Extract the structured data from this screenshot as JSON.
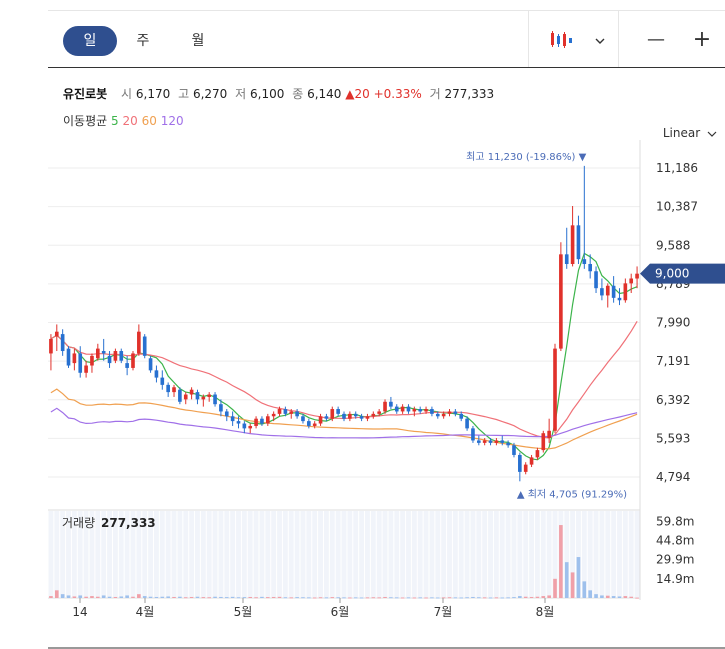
{
  "tabs": [
    "일",
    "주",
    "월"
  ],
  "active_tab": 0,
  "controls": {
    "chart_icon": "candlestick-icon",
    "dropdown_icon": "chevron-down-icon",
    "zoom_out": "—",
    "zoom_in": "+"
  },
  "quote": {
    "name": "유진로봇",
    "open_label": "시",
    "open": "6,170",
    "high_label": "고",
    "high": "6,270",
    "low_label": "저",
    "low": "6,100",
    "close_label": "종",
    "close": "6,140",
    "change": "▲20",
    "change_pct": "+0.33%",
    "volume_label": "거",
    "volume": "277,333"
  },
  "ma_legend": {
    "label": "이동평균",
    "periods": [
      "5",
      "20",
      "60",
      "120"
    ],
    "colors": [
      "#3cb44b",
      "#f07178",
      "#f0a050",
      "#a070e8"
    ]
  },
  "scale_label": "Linear",
  "colors": {
    "up": "#e0312b",
    "down": "#2770d0",
    "price_tag": "#2f4f8f",
    "annotation": "#4b6cb7"
  },
  "chart_data": {
    "type": "candlestick",
    "y_ticks": [
      "11,186",
      "10,387",
      "9,588",
      "8,789",
      "7,990",
      "7,191",
      "6,392",
      "5,593",
      "4,794"
    ],
    "x_ticks": [
      "14",
      "4월",
      "5월",
      "6월",
      "7월",
      "8월"
    ],
    "current_price_label": "9,000",
    "annotations": {
      "high": "최고 11,230 (-19.86%)",
      "low": "최저 4,705 (91.29%)"
    },
    "candles": [
      [
        7350,
        7750,
        7000,
        7650
      ],
      [
        7700,
        7950,
        7400,
        7800
      ],
      [
        7750,
        7850,
        7300,
        7400
      ],
      [
        7450,
        7500,
        7050,
        7100
      ],
      [
        7150,
        7450,
        7000,
        7350
      ],
      [
        7350,
        7500,
        6850,
        6950
      ],
      [
        6950,
        7200,
        6850,
        7100
      ],
      [
        7100,
        7350,
        6950,
        7300
      ],
      [
        7250,
        7550,
        7200,
        7450
      ],
      [
        7400,
        7650,
        7200,
        7350
      ],
      [
        7300,
        7400,
        7050,
        7150
      ],
      [
        7200,
        7450,
        7150,
        7400
      ],
      [
        7400,
        7450,
        7150,
        7200
      ],
      [
        7150,
        7300,
        6900,
        7050
      ],
      [
        7050,
        7400,
        7000,
        7350
      ],
      [
        7350,
        7950,
        7300,
        7800
      ],
      [
        7700,
        7750,
        7250,
        7300
      ],
      [
        7250,
        7300,
        6950,
        7000
      ],
      [
        7000,
        7100,
        6750,
        6850
      ],
      [
        6850,
        7000,
        6600,
        6700
      ],
      [
        6700,
        6750,
        6450,
        6550
      ],
      [
        6550,
        6700,
        6450,
        6650
      ],
      [
        6600,
        6650,
        6300,
        6350
      ],
      [
        6400,
        6550,
        6300,
        6500
      ],
      [
        6500,
        6650,
        6400,
        6600
      ],
      [
        6550,
        6600,
        6300,
        6400
      ],
      [
        6400,
        6500,
        6250,
        6450
      ],
      [
        6450,
        6550,
        6350,
        6500
      ],
      [
        6500,
        6550,
        6250,
        6300
      ],
      [
        6300,
        6400,
        6050,
        6150
      ],
      [
        6150,
        6200,
        5950,
        6050
      ],
      [
        6050,
        6150,
        5850,
        5950
      ],
      [
        5950,
        6050,
        5800,
        5900
      ],
      [
        5900,
        5950,
        5700,
        5800
      ],
      [
        5800,
        5900,
        5700,
        5850
      ],
      [
        5850,
        6050,
        5800,
        6000
      ],
      [
        6000,
        6050,
        5850,
        5900
      ],
      [
        5900,
        6100,
        5850,
        6050
      ],
      [
        6050,
        6150,
        5950,
        6100
      ],
      [
        6100,
        6250,
        6050,
        6200
      ],
      [
        6200,
        6250,
        6050,
        6100
      ],
      [
        6100,
        6200,
        6000,
        6150
      ],
      [
        6150,
        6200,
        6000,
        6050
      ],
      [
        6050,
        6100,
        5900,
        5950
      ],
      [
        5950,
        6000,
        5800,
        5850
      ],
      [
        5850,
        5950,
        5800,
        5900
      ],
      [
        5900,
        6100,
        5850,
        6050
      ],
      [
        6050,
        6100,
        5950,
        6000
      ],
      [
        6000,
        6250,
        5950,
        6200
      ],
      [
        6200,
        6250,
        6050,
        6100
      ],
      [
        6100,
        6150,
        5950,
        6000
      ],
      [
        6000,
        6150,
        5950,
        6100
      ],
      [
        6100,
        6150,
        6000,
        6050
      ],
      [
        6050,
        6100,
        5950,
        6000
      ],
      [
        6000,
        6100,
        5950,
        6050
      ],
      [
        6050,
        6150,
        6000,
        6100
      ],
      [
        6100,
        6200,
        6050,
        6150
      ],
      [
        6150,
        6400,
        6100,
        6350
      ],
      [
        6350,
        6450,
        6200,
        6250
      ],
      [
        6250,
        6300,
        6100,
        6150
      ],
      [
        6150,
        6300,
        6100,
        6250
      ],
      [
        6250,
        6300,
        6100,
        6150
      ],
      [
        6150,
        6250,
        6050,
        6200
      ],
      [
        6200,
        6250,
        6100,
        6150
      ],
      [
        6150,
        6250,
        6100,
        6200
      ],
      [
        6200,
        6250,
        6050,
        6100
      ],
      [
        6100,
        6150,
        6000,
        6050
      ],
      [
        6050,
        6150,
        6000,
        6100
      ],
      [
        6100,
        6200,
        6050,
        6150
      ],
      [
        6150,
        6200,
        6050,
        6100
      ],
      [
        6100,
        6150,
        5950,
        6000
      ],
      [
        6000,
        6050,
        5750,
        5800
      ],
      [
        5800,
        5850,
        5500,
        5550
      ],
      [
        5550,
        5650,
        5450,
        5500
      ],
      [
        5500,
        5600,
        5450,
        5550
      ],
      [
        5550,
        5600,
        5450,
        5500
      ],
      [
        5500,
        5600,
        5450,
        5550
      ],
      [
        5550,
        5650,
        5450,
        5500
      ],
      [
        5500,
        5550,
        5400,
        5450
      ],
      [
        5450,
        5500,
        5200,
        5250
      ],
      [
        5250,
        5300,
        4705,
        4900
      ],
      [
        4900,
        5100,
        4850,
        5050
      ],
      [
        5050,
        5250,
        5000,
        5200
      ],
      [
        5200,
        5400,
        5150,
        5350
      ],
      [
        5350,
        5750,
        5300,
        5700
      ],
      [
        5600,
        6000,
        5500,
        5750
      ],
      [
        5750,
        7550,
        5700,
        7450
      ],
      [
        7450,
        9650,
        7400,
        9400
      ],
      [
        9400,
        9950,
        9100,
        9200
      ],
      [
        9200,
        10400,
        9150,
        10000
      ],
      [
        10000,
        10200,
        9200,
        9300
      ],
      [
        9300,
        11230,
        9100,
        9200
      ],
      [
        9200,
        9400,
        8900,
        9050
      ],
      [
        9050,
        9150,
        8600,
        8700
      ],
      [
        8700,
        8900,
        8450,
        8550
      ],
      [
        8550,
        8800,
        8300,
        8750
      ],
      [
        8750,
        8950,
        8400,
        8500
      ],
      [
        8500,
        8700,
        8350,
        8450
      ],
      [
        8450,
        8900,
        8400,
        8800
      ],
      [
        8800,
        9000,
        8600,
        8900
      ],
      [
        8900,
        9150,
        8700,
        9000
      ]
    ],
    "volume_ticks": [
      "59.8m",
      "44.8m",
      "29.9m",
      "14.9m"
    ],
    "volume_label": "거래량",
    "volume_value": "277,333",
    "volumes_m": [
      1.5,
      6,
      3,
      2,
      1.2,
      2,
      1,
      1.5,
      1,
      2,
      1,
      0.8,
      1.2,
      2,
      1,
      3,
      1.5,
      1,
      0.8,
      1,
      1.2,
      0.8,
      1,
      0.6,
      0.8,
      1,
      0.7,
      0.6,
      1,
      0.8,
      0.7,
      0.9,
      0.6,
      0.7,
      0.8,
      0.6,
      0.9,
      0.7,
      0.8,
      0.9,
      0.6,
      0.5,
      0.7,
      0.6,
      0.5,
      0.4,
      0.6,
      0.5,
      0.7,
      0.6,
      0.5,
      0.4,
      0.5,
      0.4,
      0.5,
      0.6,
      0.5,
      0.8,
      0.6,
      0.5,
      0.4,
      0.5,
      0.4,
      0.5,
      0.4,
      0.5,
      0.4,
      0.5,
      0.6,
      0.5,
      0.4,
      0.6,
      0.8,
      0.6,
      0.5,
      0.4,
      0.5,
      0.4,
      0.5,
      0.7,
      1.5,
      1,
      0.8,
      1,
      1.5,
      2,
      15,
      57,
      28,
      20,
      32,
      13,
      6,
      3,
      2,
      1.8,
      1.5,
      1.2,
      1.5,
      1,
      0.3
    ]
  }
}
